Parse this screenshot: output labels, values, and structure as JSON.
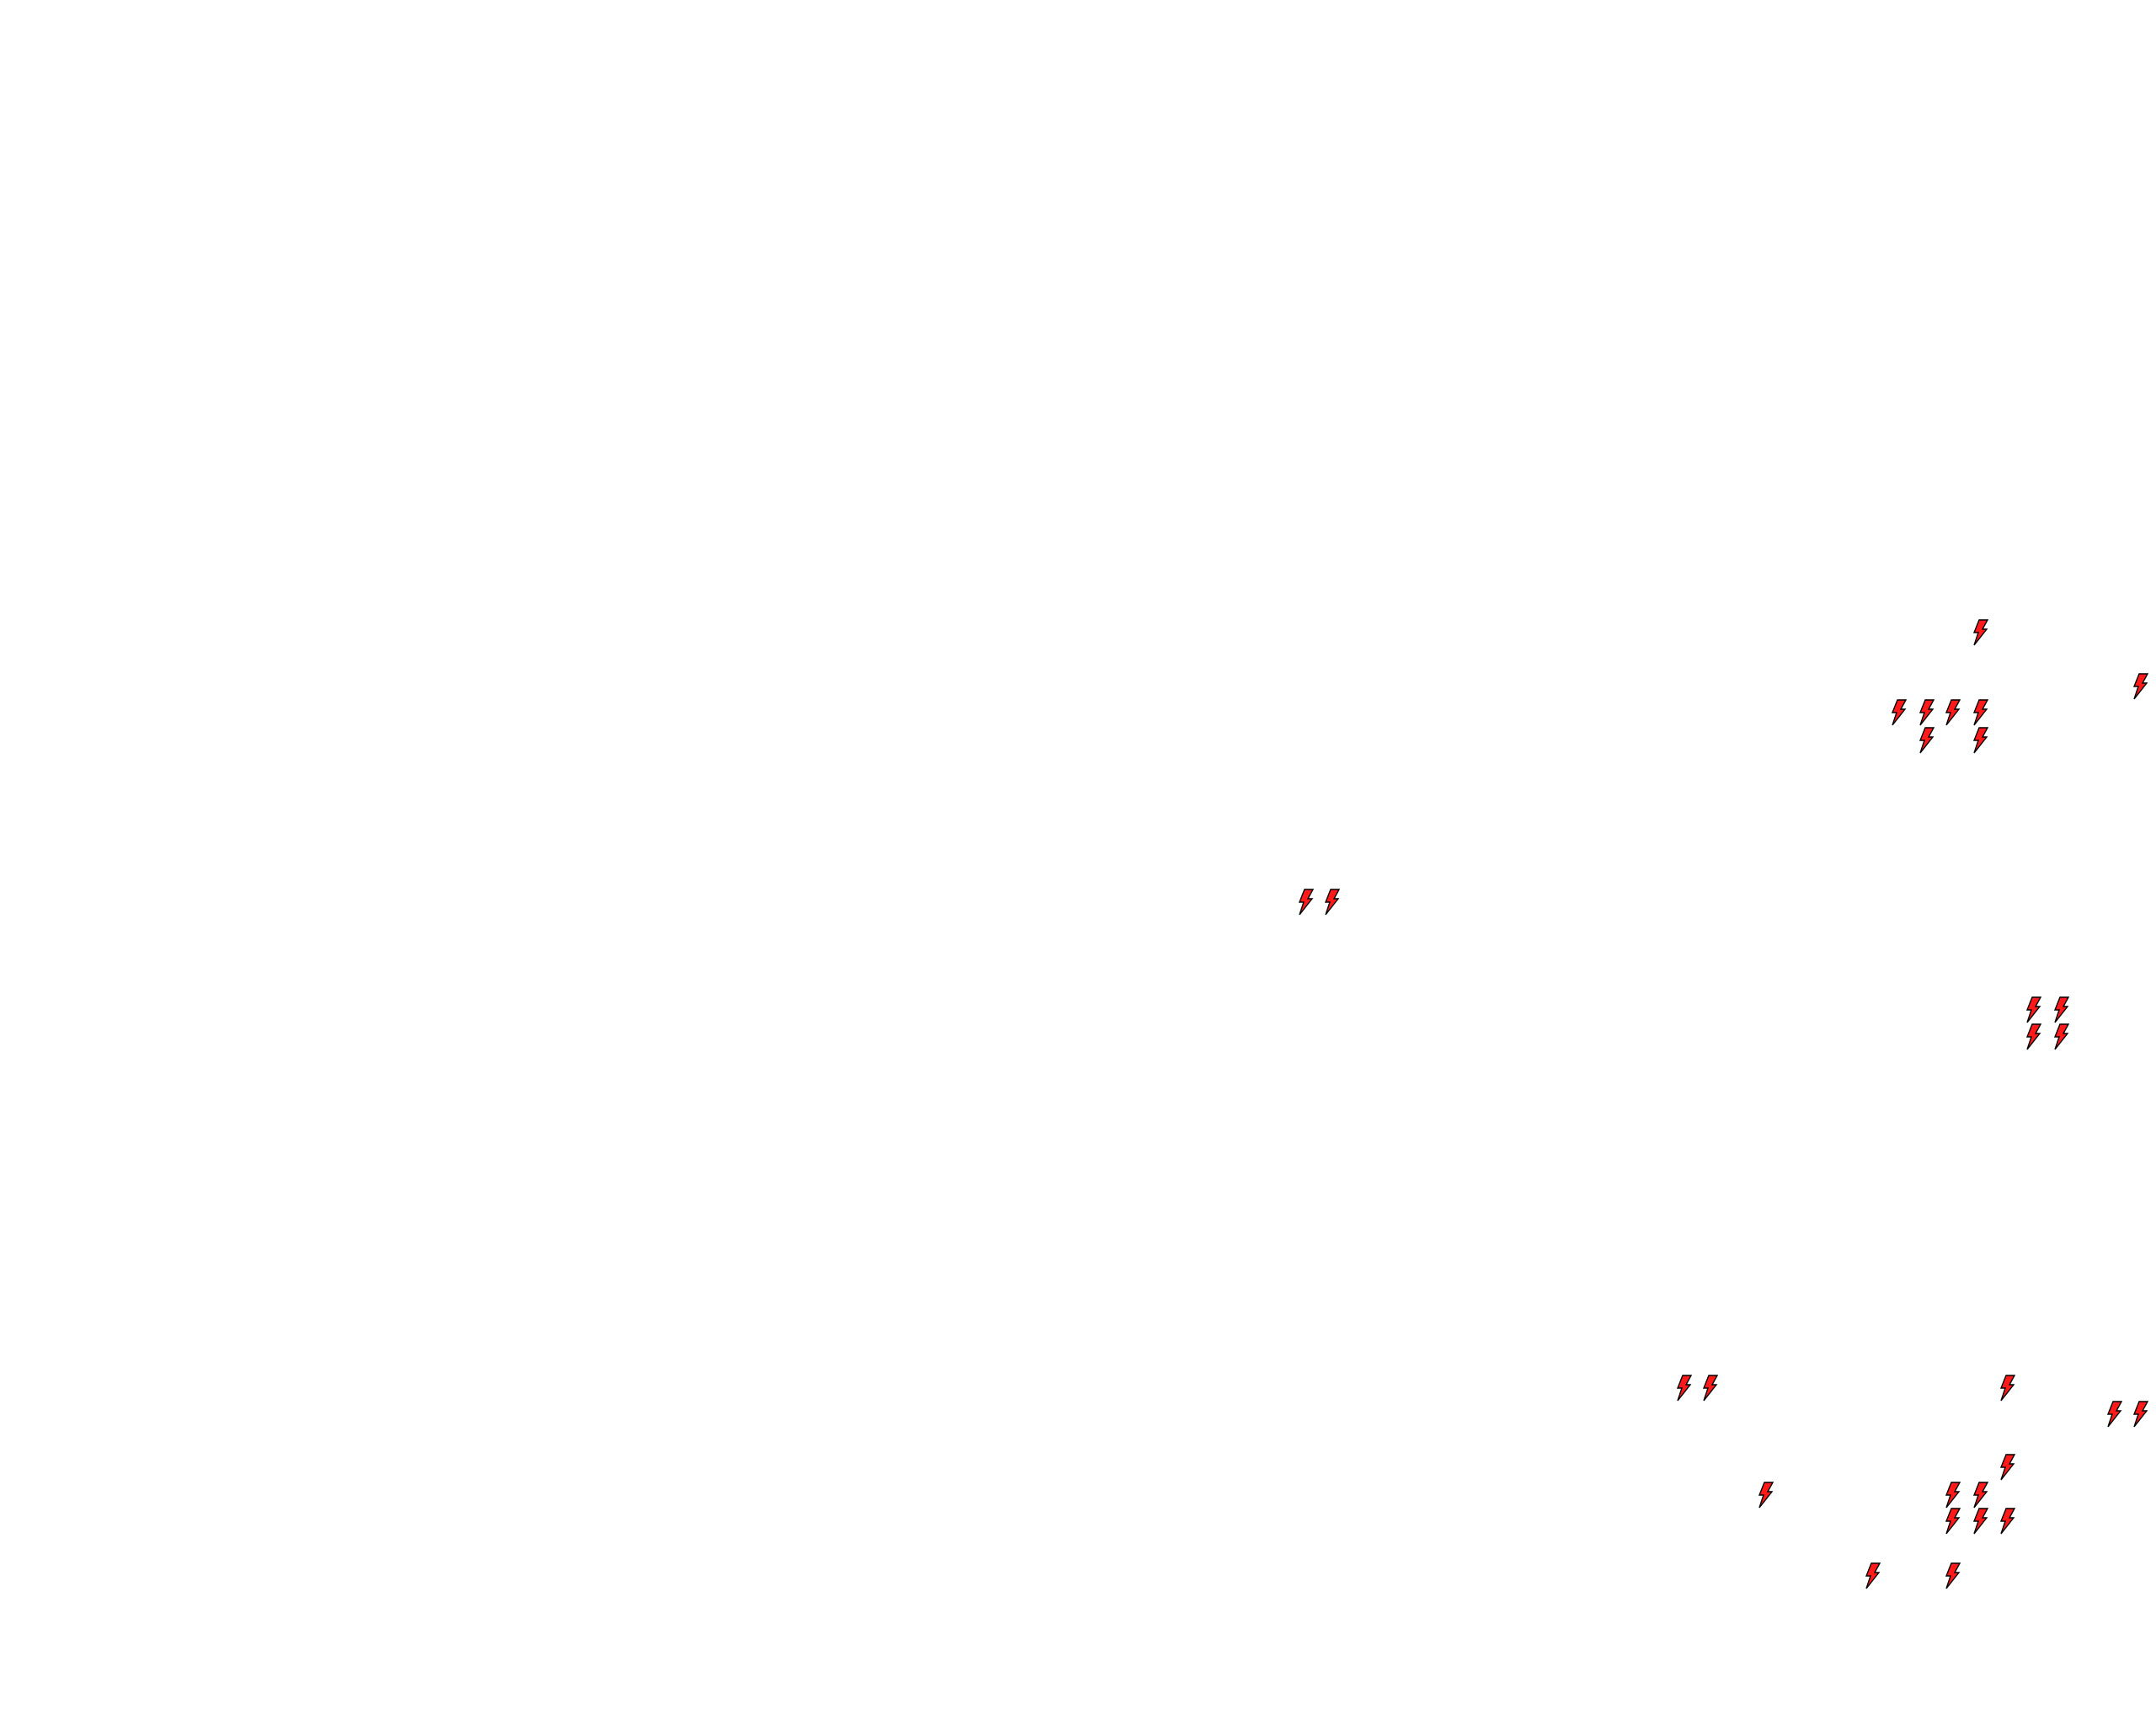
{
  "map": {
    "background_color": "#ffffff",
    "marker_icon": "lightning-bolt-icon",
    "marker_fill": "#ff1a1a",
    "marker_stroke": "#000000",
    "marker_count": 28
  }
}
